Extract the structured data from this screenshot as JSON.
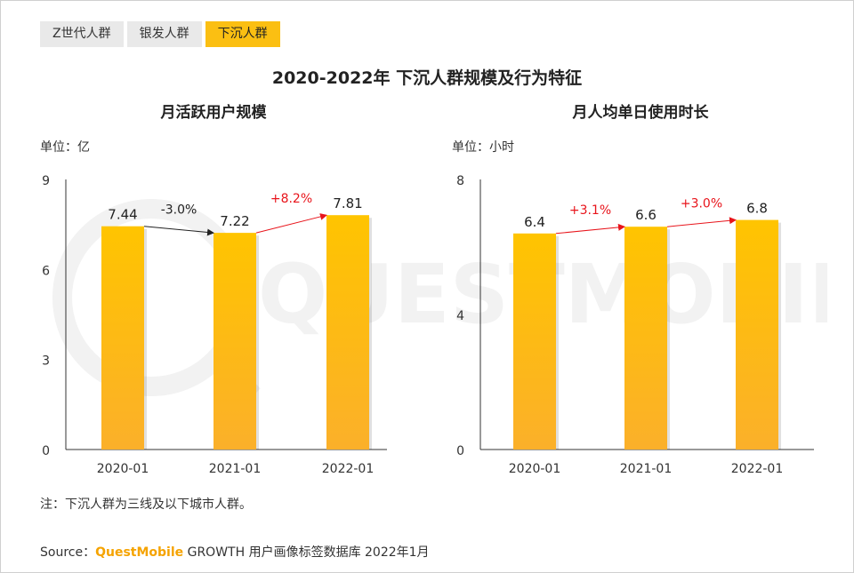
{
  "tabs": [
    {
      "label": "Z世代人群",
      "active": false
    },
    {
      "label": "银发人群",
      "active": false
    },
    {
      "label": "下沉人群",
      "active": true
    }
  ],
  "title": "2020-2022年 下沉人群规模及行为特征",
  "watermark": "QUESTMOBILE",
  "chart_data": [
    {
      "type": "bar",
      "title": "月活跃用户规模",
      "unit_label": "单位：亿",
      "categories": [
        "2020-01",
        "2021-01",
        "2022-01"
      ],
      "values": [
        7.44,
        7.22,
        7.81
      ],
      "value_labels": [
        "7.44",
        "7.22",
        "7.81"
      ],
      "ylim": [
        0,
        9
      ],
      "yticks": [
        0,
        3,
        6,
        9
      ],
      "changes": [
        {
          "label": "-3.0%",
          "color": "#222222"
        },
        {
          "label": "+8.2%",
          "color": "#e8141b"
        }
      ],
      "bar_color_top": "#ffc400",
      "bar_color_bottom": "#fbb02a"
    },
    {
      "type": "bar",
      "title": "月人均单日使用时长",
      "unit_label": "单位：小时",
      "categories": [
        "2020-01",
        "2021-01",
        "2022-01"
      ],
      "values": [
        6.4,
        6.6,
        6.8
      ],
      "value_labels": [
        "6.4",
        "6.6",
        "6.8"
      ],
      "ylim": [
        0,
        8
      ],
      "yticks": [
        0,
        4,
        8
      ],
      "changes": [
        {
          "label": "+3.1%",
          "color": "#e8141b"
        },
        {
          "label": "+3.0%",
          "color": "#e8141b"
        }
      ],
      "bar_color_top": "#ffc400",
      "bar_color_bottom": "#fbb02a"
    }
  ],
  "note": "注：下沉人群为三线及以下城市人群。",
  "source": {
    "prefix": "Source：",
    "brand": "QuestMobile",
    "text": " GROWTH 用户画像标签数据库 2022年1月"
  }
}
